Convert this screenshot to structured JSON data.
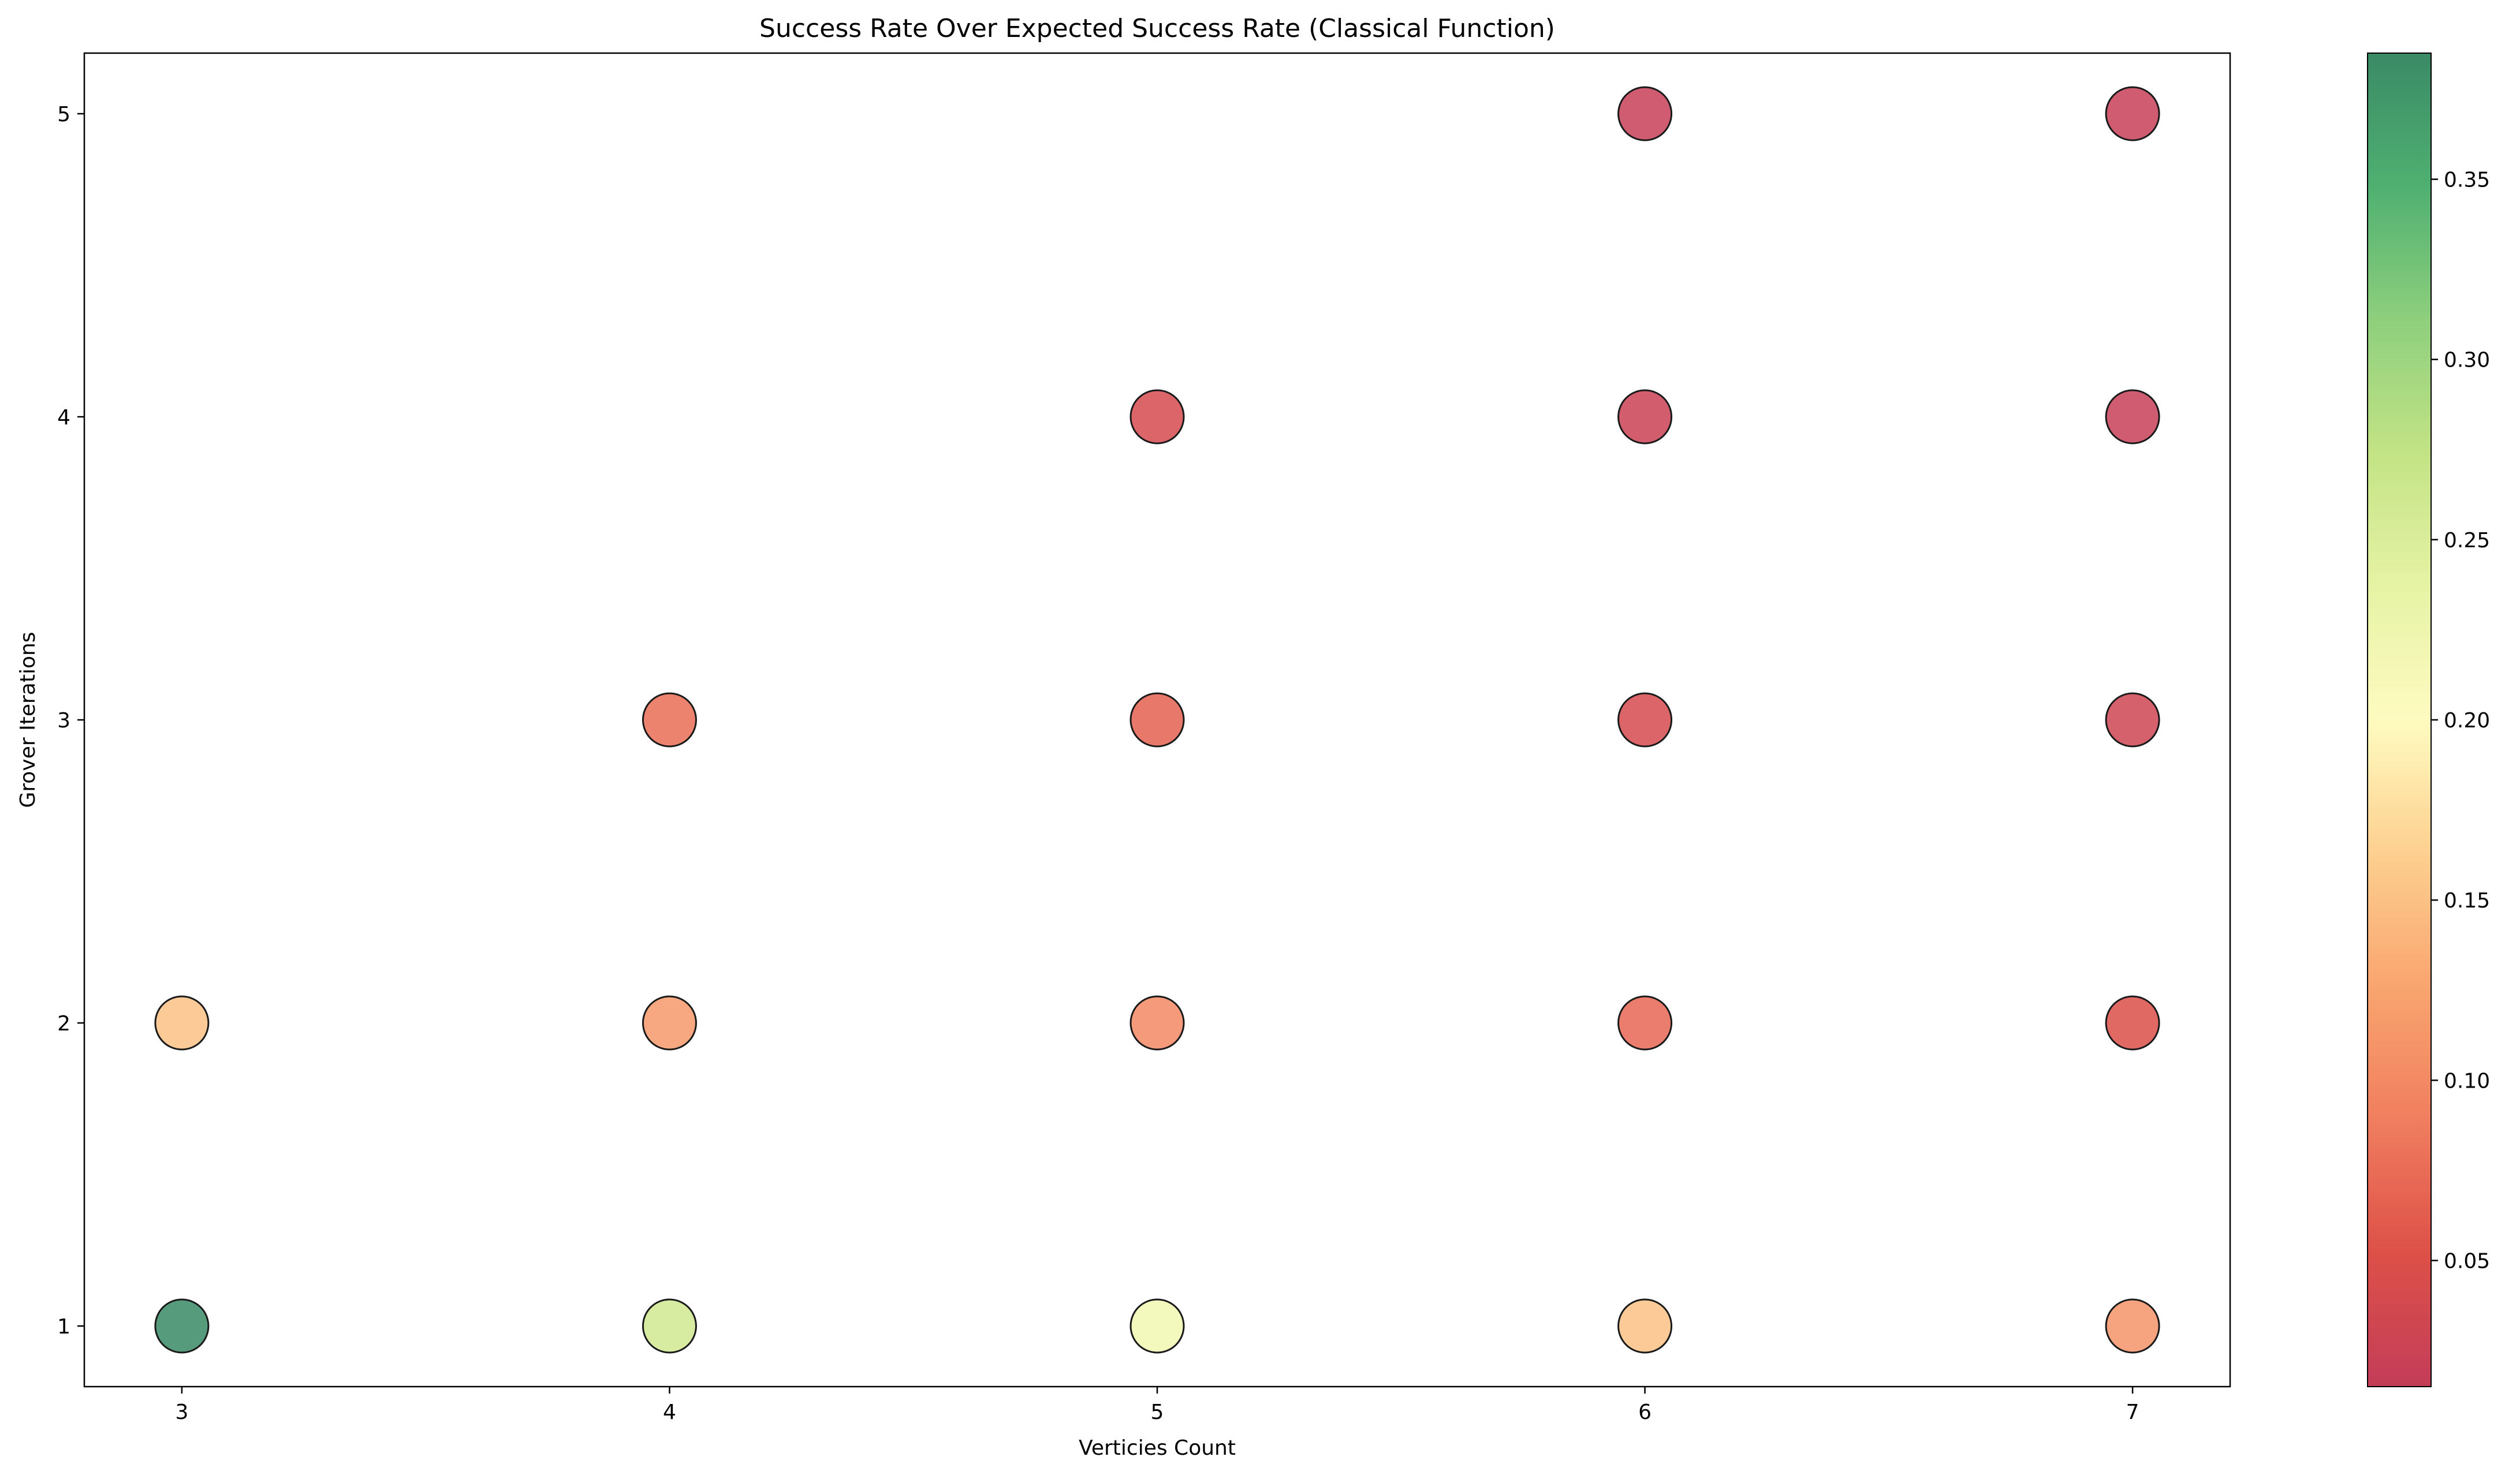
{
  "chart_data": {
    "type": "scatter",
    "title": "Success Rate Over Expected Success Rate (Classical Function)",
    "xlabel": "Verticies Count",
    "ylabel": "Grover Iterations",
    "xlim": [
      2.8,
      7.2
    ],
    "ylim": [
      0.8,
      5.2
    ],
    "xticks": [
      "3",
      "4",
      "5",
      "6",
      "7"
    ],
    "yticks": [
      "1",
      "2",
      "3",
      "4",
      "5"
    ],
    "colormap": "RdYlGn",
    "colorbar": {
      "range": [
        0.015,
        0.385
      ],
      "ticks": [
        "0.05",
        "0.10",
        "0.15",
        "0.20",
        "0.25",
        "0.30",
        "0.35"
      ]
    },
    "grid": false,
    "points": [
      {
        "x": 3,
        "y": 1,
        "value": 0.385
      },
      {
        "x": 3,
        "y": 2,
        "value": 0.15
      },
      {
        "x": 4,
        "y": 1,
        "value": 0.26
      },
      {
        "x": 4,
        "y": 2,
        "value": 0.115
      },
      {
        "x": 4,
        "y": 3,
        "value": 0.075
      },
      {
        "x": 5,
        "y": 1,
        "value": 0.22
      },
      {
        "x": 5,
        "y": 2,
        "value": 0.1
      },
      {
        "x": 5,
        "y": 3,
        "value": 0.065
      },
      {
        "x": 5,
        "y": 4,
        "value": 0.04
      },
      {
        "x": 6,
        "y": 1,
        "value": 0.15
      },
      {
        "x": 6,
        "y": 2,
        "value": 0.07
      },
      {
        "x": 6,
        "y": 3,
        "value": 0.04
      },
      {
        "x": 6,
        "y": 4,
        "value": 0.025
      },
      {
        "x": 6,
        "y": 5,
        "value": 0.02
      },
      {
        "x": 7,
        "y": 1,
        "value": 0.11
      },
      {
        "x": 7,
        "y": 2,
        "value": 0.05
      },
      {
        "x": 7,
        "y": 3,
        "value": 0.03
      },
      {
        "x": 7,
        "y": 4,
        "value": 0.02
      },
      {
        "x": 7,
        "y": 5,
        "value": 0.02
      }
    ]
  }
}
